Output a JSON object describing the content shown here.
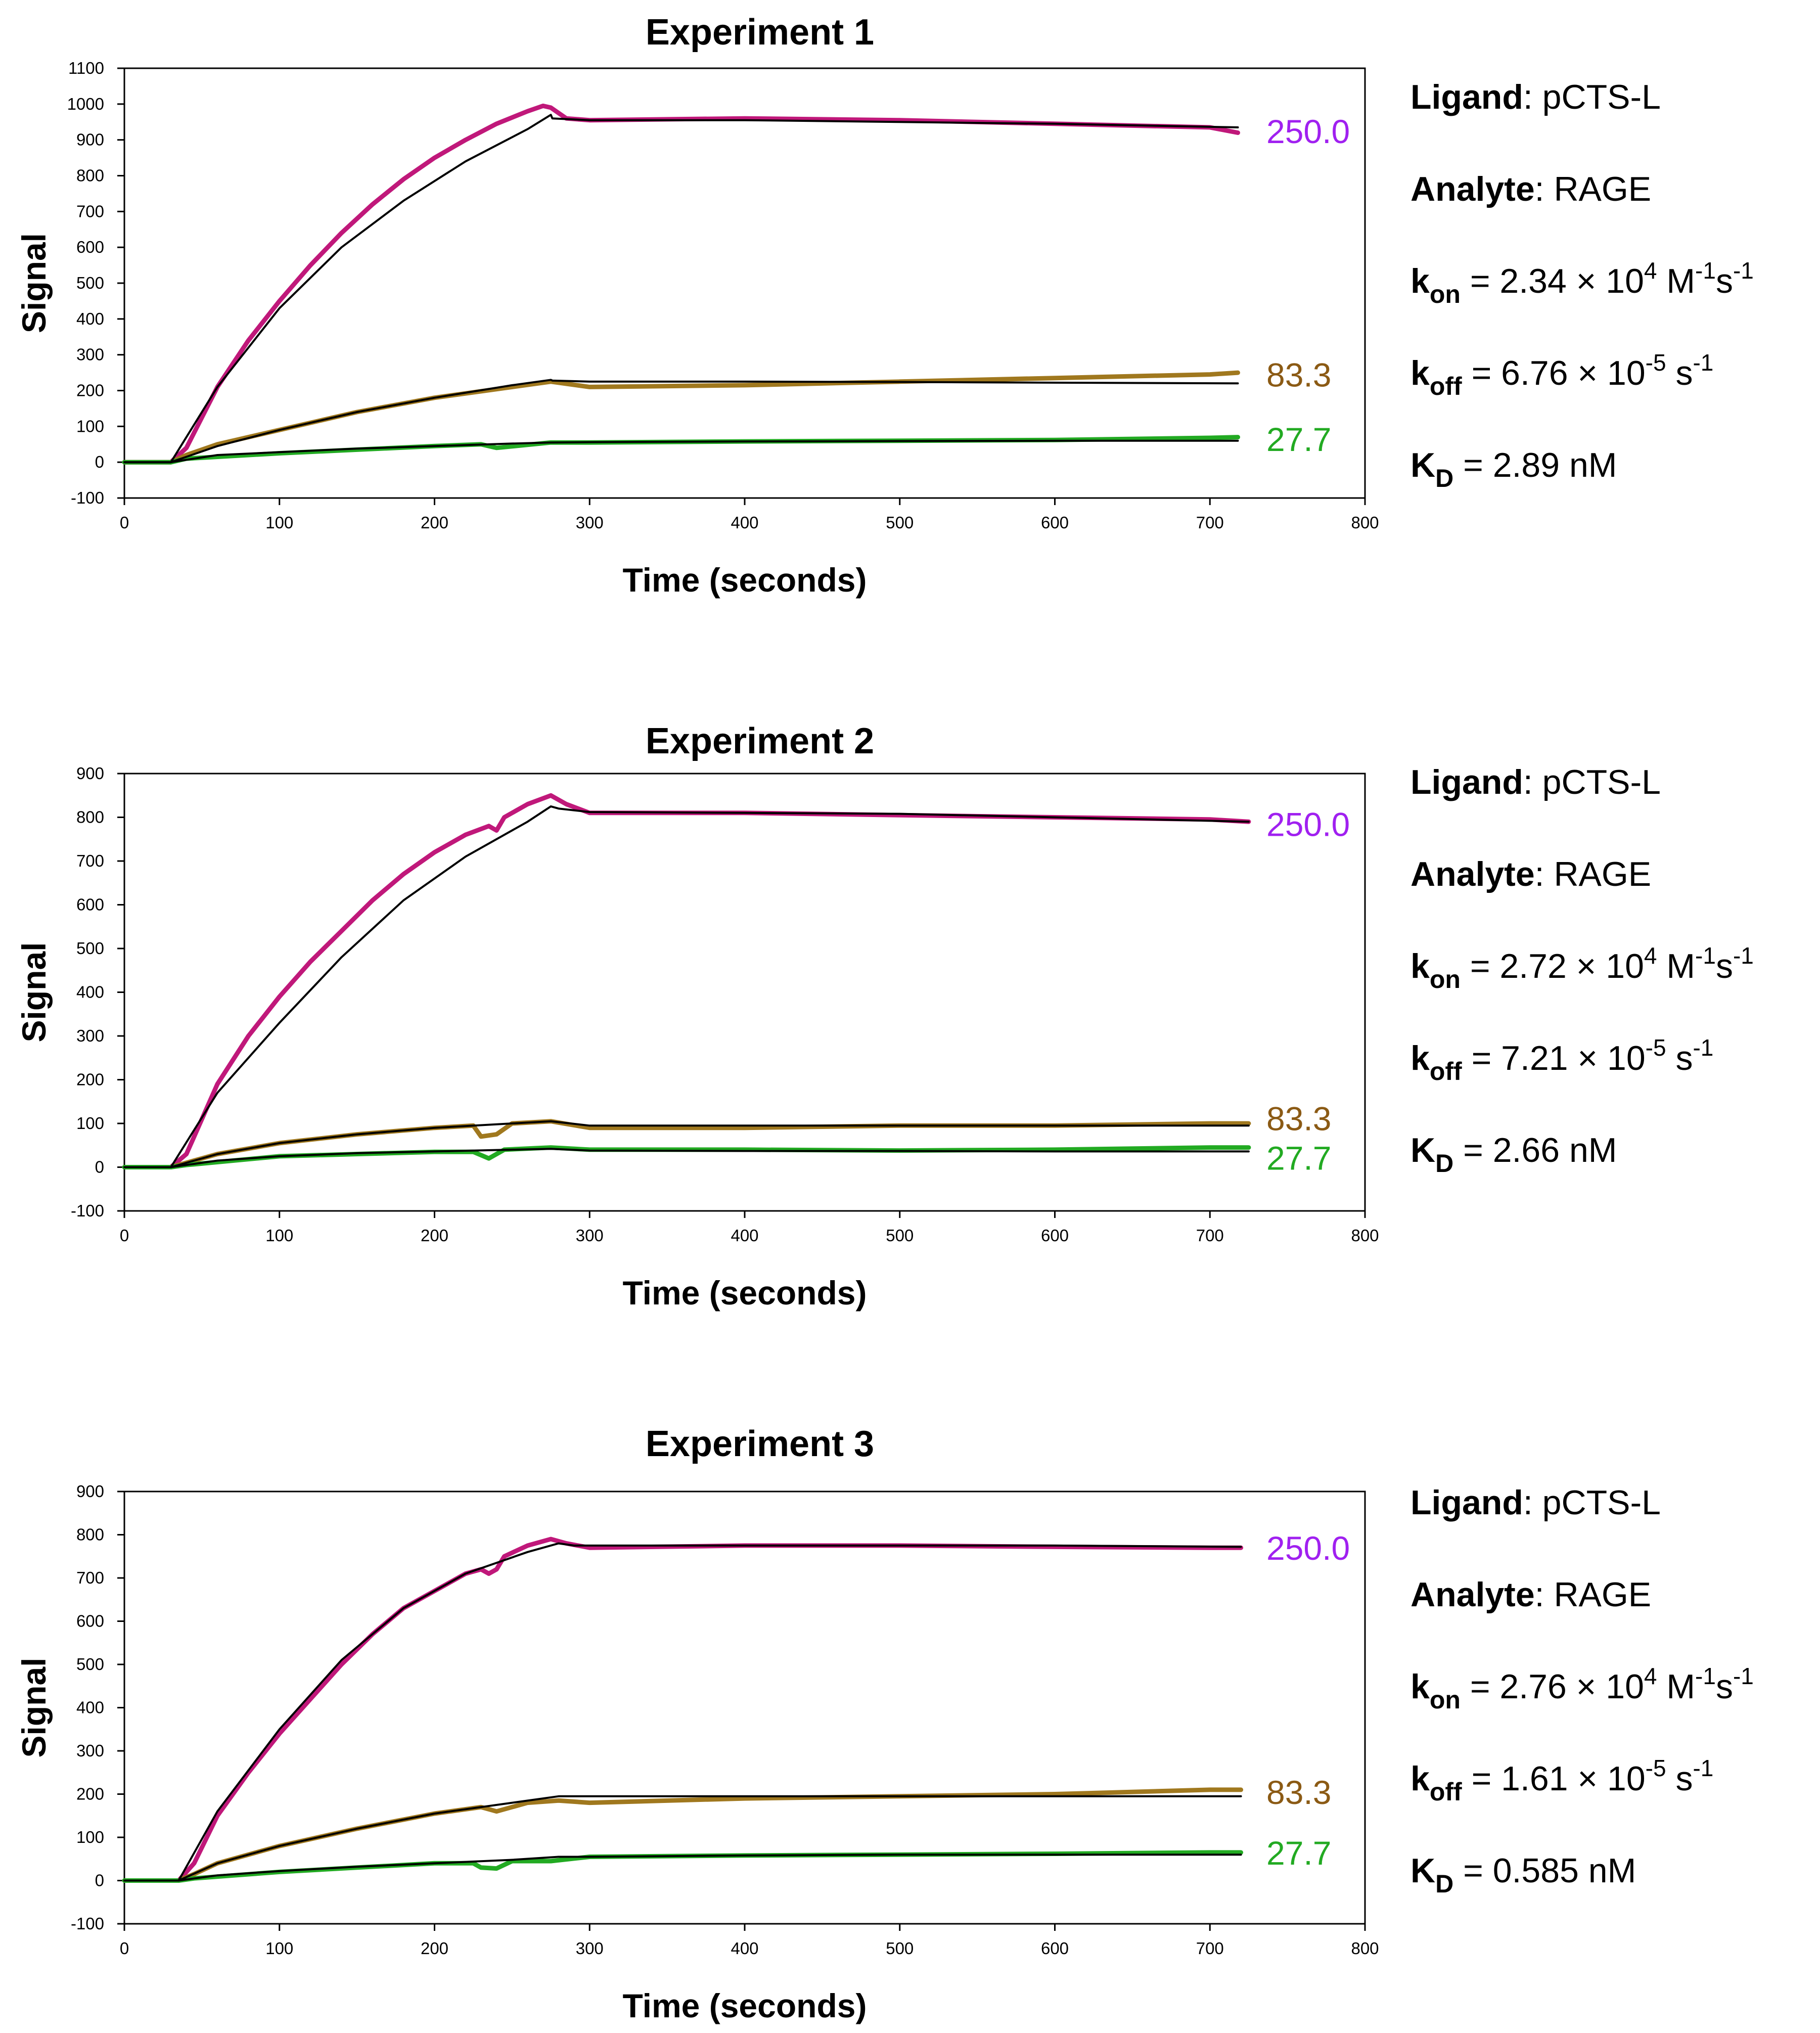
{
  "chart_data": [
    {
      "type": "line",
      "title": "Experiment 1",
      "xlabel": "Time (seconds)",
      "ylabel": "Signal",
      "xlim": [
        0,
        800
      ],
      "ylim": [
        -100,
        1100
      ],
      "x_ticks": [
        0,
        100,
        200,
        300,
        400,
        500,
        600,
        700,
        800
      ],
      "y_ticks": [
        -100,
        0,
        100,
        200,
        300,
        400,
        500,
        600,
        700,
        800,
        900,
        1000,
        1100
      ],
      "grid": false,
      "series": [
        {
          "name": "250.0",
          "color": "#c0187a",
          "x": [
            0,
            30,
            40,
            60,
            80,
            100,
            120,
            140,
            160,
            180,
            200,
            220,
            240,
            260,
            270,
            275,
            285,
            300,
            400,
            500,
            600,
            700,
            718
          ],
          "y": [
            0,
            0,
            40,
            210,
            340,
            450,
            550,
            640,
            720,
            790,
            850,
            900,
            945,
            980,
            995,
            990,
            960,
            955,
            960,
            955,
            945,
            935,
            920
          ]
        },
        {
          "name": "83.3",
          "color": "#a0781e",
          "x": [
            0,
            30,
            40,
            60,
            100,
            150,
            200,
            250,
            275,
            300,
            400,
            500,
            600,
            700,
            718
          ],
          "y": [
            0,
            0,
            20,
            50,
            90,
            140,
            180,
            210,
            225,
            210,
            215,
            225,
            235,
            245,
            250
          ]
        },
        {
          "name": "27.7",
          "color": "#22aa22",
          "x": [
            0,
            30,
            40,
            100,
            150,
            200,
            230,
            240,
            275,
            300,
            400,
            500,
            600,
            700,
            718
          ],
          "y": [
            0,
            0,
            10,
            25,
            35,
            45,
            50,
            40,
            55,
            55,
            58,
            60,
            62,
            68,
            70
          ]
        },
        {
          "fit": true,
          "color": "#000000",
          "x": [
            0,
            30,
            60,
            100,
            140,
            180,
            220,
            260,
            275,
            276,
            300,
            400,
            500,
            600,
            718
          ],
          "y": [
            0,
            0,
            210,
            430,
            600,
            730,
            840,
            930,
            970,
            960,
            955,
            955,
            950,
            945,
            935
          ]
        },
        {
          "fit": true,
          "color": "#000000",
          "x": [
            0,
            30,
            60,
            100,
            150,
            200,
            250,
            275,
            276,
            300,
            400,
            500,
            600,
            718
          ],
          "y": [
            0,
            0,
            45,
            90,
            140,
            180,
            215,
            230,
            228,
            225,
            225,
            224,
            222,
            220
          ]
        },
        {
          "fit": true,
          "color": "#000000",
          "x": [
            0,
            30,
            60,
            100,
            150,
            200,
            250,
            275,
            300,
            400,
            500,
            600,
            718
          ],
          "y": [
            0,
            0,
            20,
            28,
            38,
            45,
            52,
            55,
            56,
            58,
            59,
            60,
            60
          ]
        }
      ],
      "end_labels": [
        "250.0",
        "83.3",
        "27.7"
      ],
      "end_label_values": [
        925,
        245,
        65
      ],
      "end_label_colors": [
        "#a020f0",
        "#8b5a14",
        "#22aa22"
      ]
    },
    {
      "type": "line",
      "title": "Experiment 2",
      "xlabel": "Time (seconds)",
      "ylabel": "Signal",
      "xlim": [
        0,
        800
      ],
      "ylim": [
        -100,
        900
      ],
      "x_ticks": [
        0,
        100,
        200,
        300,
        400,
        500,
        600,
        700,
        800
      ],
      "y_ticks": [
        -100,
        0,
        100,
        200,
        300,
        400,
        500,
        600,
        700,
        800,
        900
      ],
      "grid": false,
      "series": [
        {
          "name": "250.0",
          "color": "#c0187a",
          "x": [
            0,
            30,
            40,
            60,
            80,
            100,
            120,
            140,
            160,
            180,
            200,
            220,
            235,
            240,
            245,
            260,
            275,
            285,
            300,
            400,
            500,
            600,
            700,
            725
          ],
          "y": [
            0,
            0,
            30,
            190,
            300,
            390,
            470,
            540,
            610,
            670,
            720,
            760,
            780,
            770,
            800,
            830,
            850,
            830,
            810,
            810,
            805,
            800,
            795,
            790
          ]
        },
        {
          "name": "83.3",
          "color": "#a0781e",
          "x": [
            0,
            30,
            40,
            60,
            100,
            150,
            200,
            225,
            230,
            240,
            250,
            275,
            300,
            400,
            500,
            600,
            700,
            725
          ],
          "y": [
            0,
            0,
            10,
            30,
            55,
            75,
            90,
            95,
            70,
            75,
            100,
            105,
            90,
            90,
            95,
            95,
            100,
            100
          ]
        },
        {
          "name": "27.7",
          "color": "#22aa22",
          "x": [
            0,
            30,
            40,
            100,
            200,
            225,
            235,
            245,
            275,
            300,
            400,
            500,
            600,
            700,
            725
          ],
          "y": [
            0,
            0,
            5,
            25,
            35,
            35,
            20,
            40,
            45,
            40,
            40,
            38,
            40,
            45,
            45
          ]
        },
        {
          "fit": true,
          "color": "#000000",
          "x": [
            0,
            30,
            60,
            100,
            140,
            180,
            220,
            260,
            275,
            280,
            300,
            400,
            500,
            600,
            725
          ],
          "y": [
            0,
            0,
            170,
            330,
            480,
            610,
            710,
            790,
            825,
            820,
            812,
            810,
            808,
            800,
            790
          ]
        },
        {
          "fit": true,
          "color": "#000000",
          "x": [
            0,
            30,
            60,
            100,
            150,
            200,
            250,
            275,
            300,
            400,
            500,
            600,
            725
          ],
          "y": [
            0,
            0,
            30,
            55,
            75,
            90,
            100,
            105,
            95,
            95,
            95,
            95,
            95
          ]
        },
        {
          "fit": true,
          "color": "#000000",
          "x": [
            0,
            30,
            60,
            100,
            150,
            200,
            250,
            275,
            300,
            400,
            500,
            600,
            725
          ],
          "y": [
            0,
            0,
            15,
            25,
            32,
            36,
            40,
            42,
            38,
            37,
            37,
            36,
            36
          ]
        }
      ],
      "end_labels": [
        "250.0",
        "83.3",
        "27.7"
      ],
      "end_label_values": [
        785,
        112,
        22
      ],
      "end_label_colors": [
        "#a020f0",
        "#8b5a14",
        "#22aa22"
      ]
    },
    {
      "type": "line",
      "title": "Experiment 3",
      "xlabel": "Time (seconds)",
      "ylabel": "Signal",
      "xlim": [
        0,
        800
      ],
      "ylim": [
        -100,
        900
      ],
      "x_ticks": [
        0,
        100,
        200,
        300,
        400,
        500,
        600,
        700,
        800
      ],
      "y_ticks": [
        -100,
        0,
        100,
        200,
        300,
        400,
        500,
        600,
        700,
        800,
        900
      ],
      "grid": false,
      "series": [
        {
          "name": "250.0",
          "color": "#c0187a",
          "x": [
            0,
            35,
            45,
            60,
            80,
            100,
            120,
            140,
            160,
            180,
            200,
            220,
            230,
            235,
            240,
            245,
            260,
            275,
            285,
            300,
            400,
            500,
            600,
            700,
            720
          ],
          "y": [
            0,
            0,
            40,
            150,
            250,
            340,
            420,
            500,
            570,
            630,
            670,
            710,
            720,
            710,
            720,
            750,
            775,
            790,
            780,
            770,
            775,
            775,
            772,
            770,
            770
          ]
        },
        {
          "name": "83.3",
          "color": "#a0781e",
          "x": [
            0,
            35,
            45,
            60,
            100,
            150,
            200,
            230,
            240,
            260,
            280,
            300,
            400,
            500,
            600,
            700,
            720
          ],
          "y": [
            0,
            0,
            15,
            40,
            80,
            120,
            155,
            170,
            160,
            180,
            185,
            180,
            190,
            195,
            200,
            210,
            210
          ]
        },
        {
          "name": "27.7",
          "color": "#22aa22",
          "x": [
            0,
            35,
            45,
            100,
            150,
            200,
            225,
            230,
            240,
            250,
            275,
            300,
            400,
            500,
            600,
            700,
            720
          ],
          "y": [
            0,
            0,
            5,
            20,
            30,
            40,
            40,
            30,
            28,
            45,
            45,
            55,
            58,
            60,
            62,
            65,
            65
          ]
        },
        {
          "fit": true,
          "color": "#000000",
          "x": [
            0,
            35,
            60,
            100,
            140,
            180,
            220,
            260,
            280,
            290,
            300,
            400,
            500,
            600,
            720
          ],
          "y": [
            0,
            0,
            160,
            350,
            510,
            630,
            710,
            760,
            780,
            775,
            775,
            775,
            775,
            775,
            772
          ]
        },
        {
          "fit": true,
          "color": "#000000",
          "x": [
            0,
            35,
            60,
            100,
            150,
            200,
            250,
            280,
            300,
            400,
            500,
            600,
            720
          ],
          "y": [
            0,
            0,
            40,
            80,
            120,
            155,
            180,
            195,
            195,
            195,
            195,
            195,
            195
          ]
        },
        {
          "fit": true,
          "color": "#000000",
          "x": [
            0,
            35,
            60,
            100,
            150,
            200,
            250,
            280,
            300,
            400,
            500,
            600,
            720
          ],
          "y": [
            0,
            0,
            12,
            22,
            32,
            40,
            48,
            55,
            55,
            58,
            60,
            60,
            60
          ]
        }
      ],
      "end_labels": [
        "250.0",
        "83.3",
        "27.7"
      ],
      "end_label_values": [
        770,
        205,
        65
      ],
      "end_label_colors": [
        "#a020f0",
        "#8b5a14",
        "#22aa22"
      ]
    }
  ],
  "parameters": [
    {
      "ligand_label": "Ligand",
      "ligand_value": "pCTS-L",
      "analyte_label": "Analyte",
      "analyte_value": "RAGE",
      "kon": "2.34 × 10",
      "kon_exp": "4",
      "kon_unit": "M",
      "kon_unit_exp": "-1",
      "kon_unit_s": "s",
      "kon_unit_s_exp": "-1",
      "koff": "6.76 × 10",
      "koff_exp": "-5",
      "koff_unit": "s",
      "koff_unit_exp": "-1",
      "kd": "2.89 nM"
    },
    {
      "ligand_label": "Ligand",
      "ligand_value": "pCTS-L",
      "analyte_label": "Analyte",
      "analyte_value": "RAGE",
      "kon": "2.72 × 10",
      "kon_exp": "4",
      "kon_unit": "M",
      "kon_unit_exp": "-1",
      "kon_unit_s": "s",
      "kon_unit_s_exp": "-1",
      "koff": "7.21 × 10",
      "koff_exp": "-5",
      "koff_unit": "s",
      "koff_unit_exp": "-1",
      "kd": "2.66 nM"
    },
    {
      "ligand_label": "Ligand",
      "ligand_value": "pCTS-L",
      "analyte_label": "Analyte",
      "analyte_value": "RAGE",
      "kon": "2.76 × 10",
      "kon_exp": "4",
      "kon_unit": "M",
      "kon_unit_exp": "-1",
      "kon_unit_s": "s",
      "kon_unit_s_exp": "-1",
      "koff": "1.61 × 10",
      "koff_exp": "-5",
      "koff_unit": "s",
      "koff_unit_exp": "-1",
      "kd": "0.585 nM"
    }
  ],
  "symbols": {
    "k": "k",
    "K": "K",
    "on_sub": "on",
    "off_sub": "off",
    "d_sub": "D",
    "equals": "="
  }
}
